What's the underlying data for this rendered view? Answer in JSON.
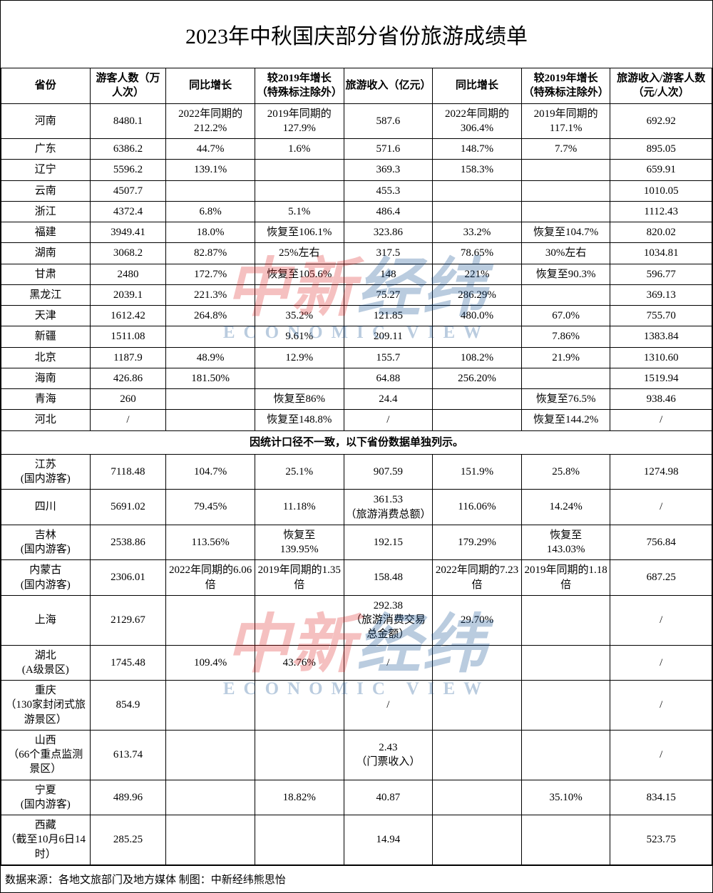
{
  "title": "2023年中秋国庆部分省份旅游成绩单",
  "columns": [
    "省份",
    "游客人数（万人次）",
    "同比增长",
    "较2019年增长（特殊标注除外）",
    "旅游收入（亿元）",
    "同比增长",
    "较2019年增长（特殊标注除外）",
    "旅游收入/游客人数（元/人次）"
  ],
  "separator_text": "因统计口径不一致，以下省份数据单独列示。",
  "source": "数据来源：各地文旅部门及地方媒体  制图：中新经纬熊思怡",
  "watermark": {
    "cn_part1": "中新",
    "cn_part2": "经纬",
    "en": "ECONOMIC VIEW"
  },
  "rows_top": [
    {
      "c0": "河南",
      "c1": "8480.1",
      "c2": "2022年同期的212.2%",
      "c3": "2019年同期的127.9%",
      "c4": "587.6",
      "c5": "2022年同期的306.4%",
      "c6": "2019年同期的117.1%",
      "c7": "692.92"
    },
    {
      "c0": "广东",
      "c1": "6386.2",
      "c2": "44.7%",
      "c3": "1.6%",
      "c4": "571.6",
      "c5": "148.7%",
      "c6": "7.7%",
      "c7": "895.05"
    },
    {
      "c0": "辽宁",
      "c1": "5596.2",
      "c2": "139.1%",
      "c3": "",
      "c4": "369.3",
      "c5": "158.3%",
      "c6": "",
      "c7": "659.91"
    },
    {
      "c0": "云南",
      "c1": "4507.7",
      "c2": "",
      "c3": "",
      "c4": "455.3",
      "c5": "",
      "c6": "",
      "c7": "1010.05"
    },
    {
      "c0": "浙江",
      "c1": "4372.4",
      "c2": "6.8%",
      "c3": "5.1%",
      "c4": "486.4",
      "c5": "",
      "c6": "",
      "c7": "1112.43"
    },
    {
      "c0": "福建",
      "c1": "3949.41",
      "c2": "18.0%",
      "c3": "恢复至106.1%",
      "c4": "323.86",
      "c5": "33.2%",
      "c6": "恢复至104.7%",
      "c7": "820.02"
    },
    {
      "c0": "湖南",
      "c1": "3068.2",
      "c2": "82.87%",
      "c3": "25%左右",
      "c4": "317.5",
      "c5": "78.65%",
      "c6": "30%左右",
      "c7": "1034.81"
    },
    {
      "c0": "甘肃",
      "c1": "2480",
      "c2": "172.7%",
      "c3": "恢复至105.6%",
      "c4": "148",
      "c5": "221%",
      "c6": "恢复至90.3%",
      "c7": "596.77"
    },
    {
      "c0": "黑龙江",
      "c1": "2039.1",
      "c2": "221.3%",
      "c3": "",
      "c4": "75.27",
      "c5": "286.29%",
      "c6": "",
      "c7": "369.13"
    },
    {
      "c0": "天津",
      "c1": "1612.42",
      "c2": "264.8%",
      "c3": "35.2%",
      "c4": "121.85",
      "c5": "480.0%",
      "c6": "67.0%",
      "c7": "755.70"
    },
    {
      "c0": "新疆",
      "c1": "1511.08",
      "c2": "",
      "c3": "9.61%",
      "c4": "209.11",
      "c5": "",
      "c6": "7.86%",
      "c7": "1383.84"
    },
    {
      "c0": "北京",
      "c1": "1187.9",
      "c2": "48.9%",
      "c3": "12.9%",
      "c4": "155.7",
      "c5": "108.2%",
      "c6": "21.9%",
      "c7": "1310.60"
    },
    {
      "c0": "海南",
      "c1": "426.86",
      "c2": "181.50%",
      "c3": "",
      "c4": "64.88",
      "c5": "256.20%",
      "c6": "",
      "c7": "1519.94"
    },
    {
      "c0": "青海",
      "c1": "260",
      "c2": "",
      "c3": "恢复至86%",
      "c4": "24.4",
      "c5": "",
      "c6": "恢复至76.5%",
      "c7": "938.46"
    },
    {
      "c0": "河北",
      "c1": "/",
      "c2": "",
      "c3": "恢复至148.8%",
      "c4": "/",
      "c5": "",
      "c6": "恢复至144.2%",
      "c7": "/"
    }
  ],
  "rows_bottom": [
    {
      "c0": "江苏\n(国内游客)",
      "c1": "7118.48",
      "c2": "104.7%",
      "c3": "25.1%",
      "c4": "907.59",
      "c5": "151.9%",
      "c6": "25.8%",
      "c7": "1274.98"
    },
    {
      "c0": "四川",
      "c1": "5691.02",
      "c2": "79.45%",
      "c3": "11.18%",
      "c4": "361.53\n（旅游消费总额）",
      "c5": "116.06%",
      "c6": "14.24%",
      "c7": "/"
    },
    {
      "c0": "吉林\n(国内游客)",
      "c1": "2538.86",
      "c2": "113.56%",
      "c3": "恢复至\n139.95%",
      "c4": "192.15",
      "c5": "179.29%",
      "c6": "恢复至\n143.03%",
      "c7": "756.84"
    },
    {
      "c0": "内蒙古\n(国内游客)",
      "c1": "2306.01",
      "c2": "2022年同期的6.06倍",
      "c3": "2019年同期的1.35倍",
      "c4": "158.48",
      "c5": "2022年同期的7.23倍",
      "c6": "2019年同期的1.18倍",
      "c7": "687.25"
    },
    {
      "c0": "上海",
      "c1": "2129.67",
      "c2": "",
      "c3": "",
      "c4": "292.38\n（旅游消费交易总金额）",
      "c5": "29.70%",
      "c6": "",
      "c7": "/"
    },
    {
      "c0": "湖北\n(A级景区)",
      "c1": "1745.48",
      "c2": "109.4%",
      "c3": "43.76%",
      "c4": "/",
      "c5": "",
      "c6": "",
      "c7": "/"
    },
    {
      "c0": "重庆\n（130家封闭式旅游景区）",
      "c1": "854.9",
      "c2": "",
      "c3": "",
      "c4": "/",
      "c5": "",
      "c6": "",
      "c7": "/"
    },
    {
      "c0": "山西\n（66个重点监测景区）",
      "c1": "613.74",
      "c2": "",
      "c3": "",
      "c4": "2.43\n（门票收入）",
      "c5": "",
      "c6": "",
      "c7": "/"
    },
    {
      "c0": "宁夏\n(国内游客)",
      "c1": "489.96",
      "c2": "",
      "c3": "18.82%",
      "c4": "40.87",
      "c5": "",
      "c6": "35.10%",
      "c7": "834.15"
    },
    {
      "c0": "西藏\n（截至10月6日14时）",
      "c1": "285.25",
      "c2": "",
      "c3": "",
      "c4": "14.94",
      "c5": "",
      "c6": "",
      "c7": "523.75"
    }
  ]
}
